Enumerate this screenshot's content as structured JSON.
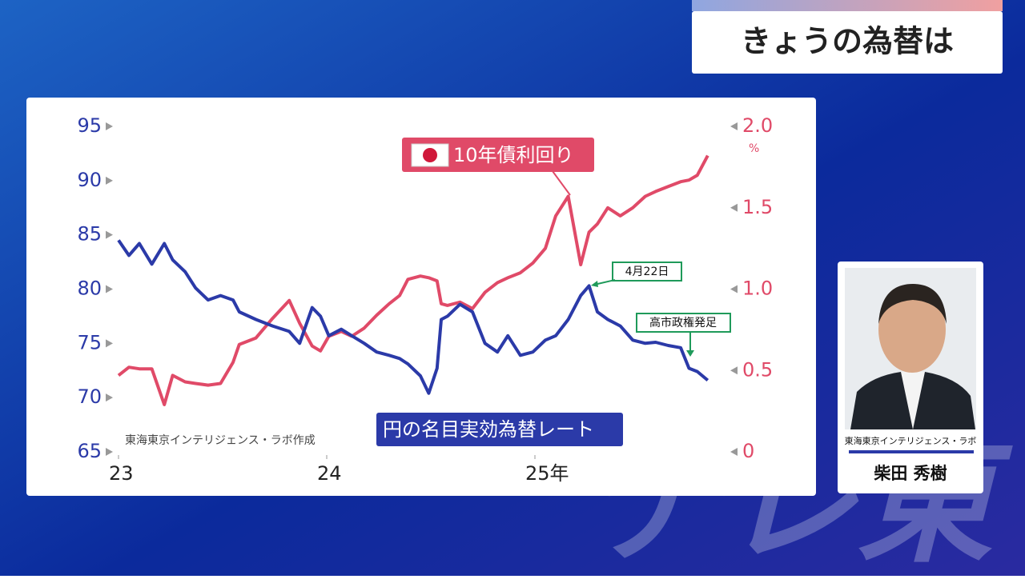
{
  "header": {
    "title": "きょうの為替は"
  },
  "presenter": {
    "affiliation": "東海東京インテリジェンス・ラボ",
    "name": "柴田 秀樹"
  },
  "watermark": "テレ東",
  "chart_data": {
    "type": "line",
    "source": "東海東京インテリジェンス・ラボ作成",
    "y2_unit": "%",
    "annotations": [
      "4月22日",
      "高市政権発足"
    ],
    "x": [
      2023.0,
      2023.05,
      2023.1,
      2023.16,
      2023.22,
      2023.26,
      2023.32,
      2023.37,
      2023.43,
      2023.49,
      2023.55,
      2023.58,
      2023.66,
      2023.74,
      2023.82,
      2023.87,
      2023.93,
      2023.97,
      2024.01,
      2024.07,
      2024.12,
      2024.18,
      2024.24,
      2024.3,
      2024.35,
      2024.39,
      2024.45,
      2024.49,
      2024.53,
      2024.55,
      2024.58,
      2024.64,
      2024.7,
      2024.76,
      2024.82,
      2024.87,
      2024.93,
      2024.99,
      2025.05,
      2025.1,
      2025.16,
      2025.22,
      2025.26,
      2025.3,
      2025.35,
      2025.41,
      2025.47,
      2025.53,
      2025.58,
      2025.64,
      2025.7,
      2025.74,
      2025.78,
      2025.83
    ],
    "xlim": [
      2023,
      2025.85
    ],
    "xticks": [
      {
        "value": 2023,
        "label": "23"
      },
      {
        "value": 2024,
        "label": "24"
      },
      {
        "value": 2025,
        "label": "25年"
      }
    ],
    "ylim": [
      65,
      95
    ],
    "yticks": [
      65,
      70,
      75,
      80,
      85,
      90,
      95
    ],
    "y2lim": [
      0,
      2
    ],
    "y2ticks": [
      0,
      0.5,
      {
        "value": 1,
        "label": "1.0"
      },
      1.5,
      {
        "value": 2,
        "label": "2.0"
      }
    ],
    "series": [
      {
        "name": "円の名目実効為替レート",
        "color": "#2b3aa8",
        "axis": "y",
        "values": [
          84.5,
          83.1,
          84.2,
          82.3,
          84.2,
          82.7,
          81.6,
          80.1,
          79.0,
          79.4,
          79.0,
          77.9,
          77.2,
          76.6,
          76.1,
          75.0,
          78.3,
          77.5,
          75.7,
          76.3,
          75.7,
          75.0,
          74.2,
          73.9,
          73.6,
          73.1,
          72.0,
          70.4,
          72.7,
          77.2,
          77.5,
          78.6,
          77.9,
          75.0,
          74.2,
          75.7,
          73.9,
          74.2,
          75.3,
          75.7,
          77.2,
          79.4,
          80.3,
          77.9,
          77.2,
          76.6,
          75.3,
          75.0,
          75.1,
          74.8,
          74.6,
          72.7,
          72.4,
          71.6
        ]
      },
      {
        "name": "10年債利回り",
        "color": "#e04a68",
        "axis": "y2",
        "values": [
          0.47,
          0.52,
          0.51,
          0.51,
          0.29,
          0.47,
          0.43,
          0.42,
          0.41,
          0.42,
          0.55,
          0.66,
          0.7,
          0.82,
          0.93,
          0.79,
          0.65,
          0.62,
          0.71,
          0.74,
          0.71,
          0.76,
          0.84,
          0.91,
          0.96,
          1.06,
          1.08,
          1.07,
          1.05,
          0.91,
          0.9,
          0.92,
          0.88,
          0.98,
          1.04,
          1.07,
          1.1,
          1.16,
          1.25,
          1.45,
          1.57,
          1.15,
          1.35,
          1.4,
          1.5,
          1.45,
          1.5,
          1.57,
          1.6,
          1.63,
          1.66,
          1.67,
          1.7,
          1.82
        ]
      }
    ]
  }
}
